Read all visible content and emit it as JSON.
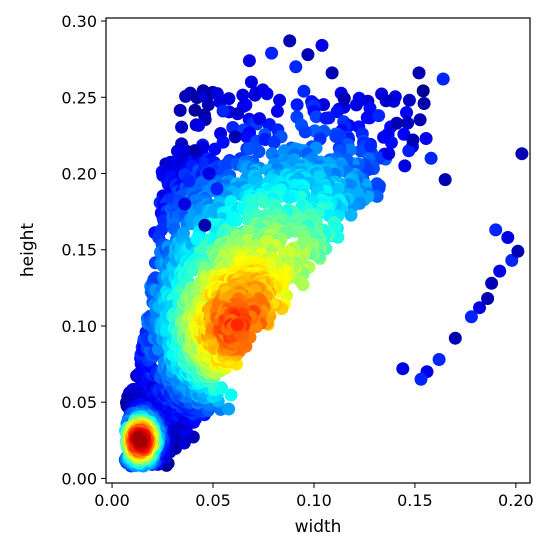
{
  "chart_data": {
    "type": "scatter",
    "title": "",
    "xlabel": "width",
    "ylabel": "height",
    "xlim": [
      -0.003,
      0.207
    ],
    "ylim": [
      -0.003,
      0.302
    ],
    "x_ticks": [
      0.0,
      0.05,
      0.1,
      0.15,
      0.2
    ],
    "x_tick_labels": [
      "0.00",
      "0.05",
      "0.10",
      "0.15",
      "0.20"
    ],
    "y_ticks": [
      0.0,
      0.05,
      0.1,
      0.15,
      0.2,
      0.25,
      0.3
    ],
    "y_tick_labels": [
      "0.00",
      "0.05",
      "0.10",
      "0.15",
      "0.20",
      "0.25",
      "0.30"
    ],
    "grid": false,
    "legend": "none",
    "colormap": "jet",
    "color_encoding": "point density (blue = sparse, red = dense)",
    "color_stops": [
      "#00007f",
      "#0000ff",
      "#007fff",
      "#00ffff",
      "#7fff7f",
      "#ffff00",
      "#ff7f00",
      "#ff0000",
      "#7f0000"
    ],
    "series": [
      {
        "x": [
          0.088,
          0.104,
          0.079,
          0.097,
          0.068,
          0.091,
          0.109,
          0.069,
          0.164,
          0.152,
          0.083,
          0.095,
          0.115,
          0.121,
          0.132,
          0.141,
          0.073,
          0.055,
          0.061,
          0.145,
          0.158,
          0.165,
          0.137,
          0.128,
          0.149,
          0.048,
          0.052,
          0.041,
          0.036,
          0.038,
          0.046,
          0.156,
          0.162,
          0.17,
          0.144,
          0.153,
          0.188,
          0.192,
          0.198,
          0.201,
          0.196,
          0.19,
          0.186,
          0.182,
          0.178,
          0.203
        ],
        "y": [
          0.287,
          0.284,
          0.279,
          0.278,
          0.274,
          0.27,
          0.266,
          0.26,
          0.262,
          0.266,
          0.248,
          0.254,
          0.249,
          0.245,
          0.238,
          0.233,
          0.236,
          0.241,
          0.224,
          0.205,
          0.21,
          0.196,
          0.213,
          0.218,
          0.222,
          0.2,
          0.19,
          0.215,
          0.18,
          0.195,
          0.166,
          0.07,
          0.078,
          0.092,
          0.072,
          0.065,
          0.128,
          0.136,
          0.143,
          0.149,
          0.158,
          0.163,
          0.118,
          0.112,
          0.106,
          0.213
        ]
      }
    ]
  }
}
